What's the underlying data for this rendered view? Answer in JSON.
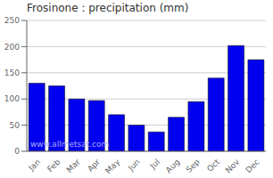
{
  "chart_data": {
    "type": "bar",
    "title": "Frosinone : precipitation (mm)",
    "categories": [
      "Jan",
      "Feb",
      "Mar",
      "Apr",
      "May",
      "Jun",
      "Jul",
      "Aug",
      "Sep",
      "Oct",
      "Nov",
      "Dec"
    ],
    "values": [
      130,
      125,
      100,
      97,
      70,
      50,
      37,
      65,
      95,
      140,
      202,
      175
    ],
    "color": "#0000ee",
    "ylim": [
      0,
      250
    ],
    "yticks": [
      0,
      50,
      100,
      150,
      200,
      250
    ],
    "grid": true,
    "annotations": [
      {
        "text": "www.allmetsat.com",
        "color": "#aaaaff"
      }
    ]
  }
}
